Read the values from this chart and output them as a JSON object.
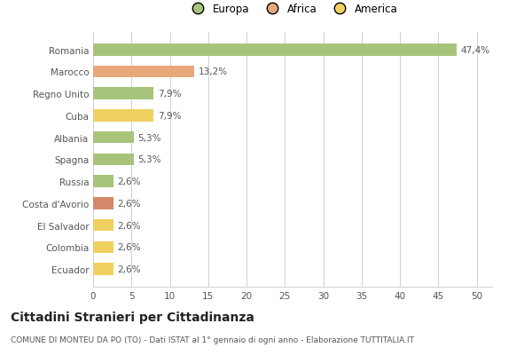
{
  "categories": [
    "Romania",
    "Marocco",
    "Regno Unito",
    "Cuba",
    "Albania",
    "Spagna",
    "Russia",
    "Costa d'Avorio",
    "El Salvador",
    "Colombia",
    "Ecuador"
  ],
  "values": [
    47.4,
    13.2,
    7.9,
    7.9,
    5.3,
    5.3,
    2.6,
    2.6,
    2.6,
    2.6,
    2.6
  ],
  "labels": [
    "47,4%",
    "13,2%",
    "7,9%",
    "7,9%",
    "5,3%",
    "5,3%",
    "2,6%",
    "2,6%",
    "2,6%",
    "2,6%",
    "2,6%"
  ],
  "colors": [
    "#a8c47a",
    "#e8a87c",
    "#a8c47a",
    "#f0d060",
    "#a8c47a",
    "#a8c47a",
    "#a8c47a",
    "#d4896a",
    "#f0d060",
    "#f0d060",
    "#f0d060"
  ],
  "legend_labels": [
    "Europa",
    "Africa",
    "America"
  ],
  "legend_colors": [
    "#a8c47a",
    "#e8a87c",
    "#f0d060"
  ],
  "xlim": [
    0,
    52
  ],
  "xticks": [
    0,
    5,
    10,
    15,
    20,
    25,
    30,
    35,
    40,
    45,
    50
  ],
  "title": "Cittadini Stranieri per Cittadinanza",
  "subtitle": "COMUNE DI MONTEU DA PO (TO) - Dati ISTAT al 1° gennaio di ogni anno - Elaborazione TUTTITALIA.IT",
  "background_color": "#ffffff",
  "grid_color": "#d0d0d0",
  "bar_height": 0.55
}
